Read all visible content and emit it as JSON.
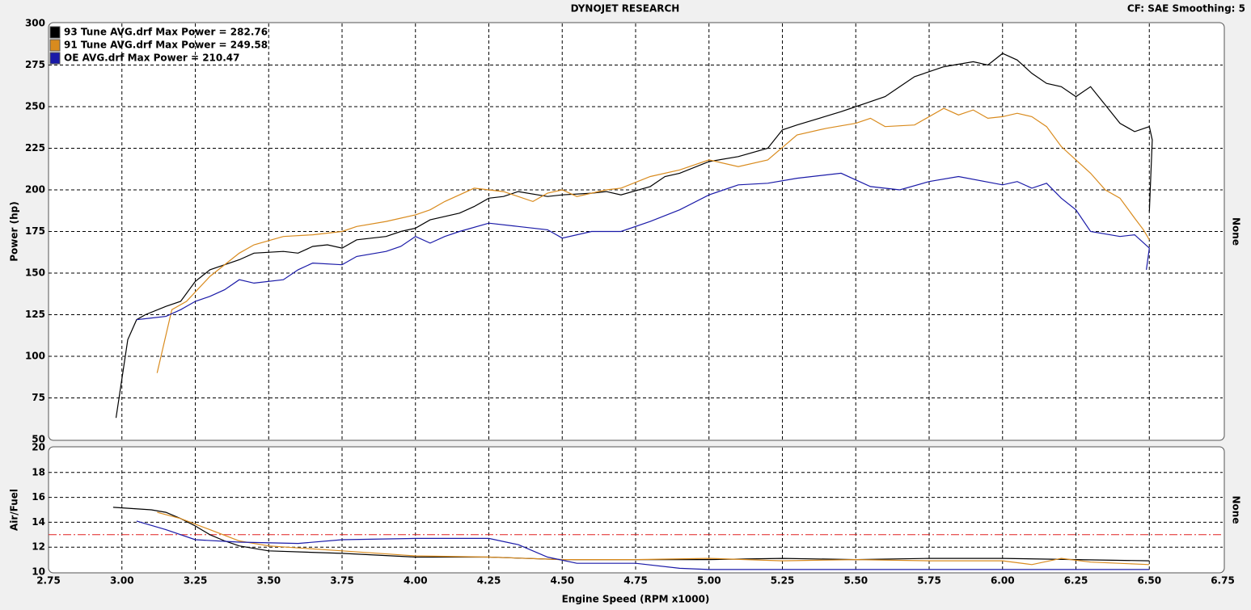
{
  "header": {
    "title": "DYNOJET RESEARCH",
    "settings": "CF: SAE  Smoothing: 5"
  },
  "chart_data": [
    {
      "type": "line",
      "ylabel": "Power (hp)",
      "right_label": "None",
      "ylim": [
        50,
        300
      ],
      "yticks": [
        50,
        75,
        100,
        125,
        150,
        175,
        200,
        225,
        250,
        275,
        300
      ],
      "grid": true,
      "series": [
        {
          "name": "93 Tune AVG.drf Max Power = 282.76",
          "color": "#000000",
          "x": [
            2.98,
            3.02,
            3.05,
            3.08,
            3.15,
            3.2,
            3.25,
            3.3,
            3.4,
            3.45,
            3.55,
            3.6,
            3.65,
            3.7,
            3.75,
            3.8,
            3.9,
            3.95,
            4.0,
            4.05,
            4.15,
            4.2,
            4.25,
            4.3,
            4.35,
            4.45,
            4.5,
            4.6,
            4.65,
            4.7,
            4.8,
            4.85,
            4.9,
            5.0,
            5.1,
            5.2,
            5.25,
            5.3,
            5.45,
            5.5,
            5.6,
            5.65,
            5.7,
            5.8,
            5.9,
            5.95,
            6.0,
            6.05,
            6.1,
            6.15,
            6.2,
            6.25,
            6.3,
            6.35,
            6.4,
            6.45,
            6.5,
            6.51,
            6.5
          ],
          "values": [
            63,
            110,
            122,
            125,
            130,
            133,
            145,
            152,
            158,
            162,
            163,
            162,
            166,
            167,
            165,
            170,
            172,
            175,
            177,
            182,
            186,
            190,
            195,
            196,
            199,
            196,
            197,
            198,
            199,
            197,
            202,
            208,
            210,
            217,
            220,
            225,
            236,
            239,
            247,
            250,
            256,
            262,
            268,
            274,
            277,
            275,
            282,
            278,
            270,
            264,
            262,
            256,
            262,
            251,
            240,
            235,
            238,
            230,
            187
          ]
        },
        {
          "name": "91 Tune AVG.drf Max Power = 249.58",
          "color": "#d98b1e",
          "x": [
            3.12,
            3.17,
            3.22,
            3.3,
            3.4,
            3.45,
            3.55,
            3.65,
            3.75,
            3.8,
            3.9,
            4.0,
            4.05,
            4.1,
            4.2,
            4.3,
            4.4,
            4.45,
            4.5,
            4.55,
            4.65,
            4.7,
            4.8,
            4.9,
            5.0,
            5.1,
            5.2,
            5.3,
            5.4,
            5.5,
            5.55,
            5.6,
            5.7,
            5.8,
            5.85,
            5.9,
            5.95,
            6.0,
            6.05,
            6.1,
            6.15,
            6.2,
            6.25,
            6.3,
            6.35,
            6.4,
            6.45,
            6.48,
            6.5
          ],
          "values": [
            90,
            128,
            133,
            148,
            162,
            167,
            172,
            173,
            175,
            178,
            181,
            185,
            188,
            193,
            201,
            199,
            193,
            198,
            200,
            196,
            200,
            201,
            208,
            212,
            218,
            214,
            218,
            233,
            237,
            240,
            243,
            238,
            239,
            249,
            245,
            248,
            243,
            244,
            246,
            244,
            238,
            226,
            218,
            210,
            200,
            195,
            183,
            176,
            170
          ]
        },
        {
          "name": "OE AVG.drf Max Power = 210.47",
          "color": "#1a1aa8",
          "x": [
            3.05,
            3.1,
            3.15,
            3.2,
            3.25,
            3.3,
            3.35,
            3.4,
            3.45,
            3.55,
            3.6,
            3.65,
            3.75,
            3.8,
            3.9,
            3.95,
            4.0,
            4.05,
            4.1,
            4.15,
            4.25,
            4.35,
            4.45,
            4.5,
            4.6,
            4.7,
            4.8,
            4.9,
            5.0,
            5.05,
            5.1,
            5.2,
            5.3,
            5.45,
            5.55,
            5.65,
            5.75,
            5.85,
            6.0,
            6.05,
            6.1,
            6.15,
            6.2,
            6.25,
            6.3,
            6.4,
            6.45,
            6.5,
            6.49
          ],
          "values": [
            122,
            123,
            124,
            128,
            133,
            136,
            140,
            146,
            144,
            146,
            152,
            156,
            155,
            160,
            163,
            166,
            172,
            168,
            172,
            175,
            180,
            178,
            176,
            171,
            175,
            175,
            181,
            188,
            197,
            200,
            203,
            204,
            207,
            210,
            202,
            200,
            205,
            208,
            203,
            205,
            201,
            204,
            195,
            188,
            175,
            172,
            173,
            165,
            152
          ]
        }
      ]
    },
    {
      "type": "line",
      "ylabel": "Air/Fuel",
      "right_label": "None",
      "xlabel": "Engine Speed (RPM x1000)",
      "xlim": [
        2.75,
        6.75
      ],
      "xticks": [
        {
          "value": 2.75,
          "label": "2.75"
        },
        {
          "value": 3,
          "label": "3.00"
        },
        {
          "value": 3.25,
          "label": "3.25"
        },
        {
          "value": 3.5,
          "label": "3.50"
        },
        {
          "value": 3.75,
          "label": "3.75"
        },
        {
          "value": 4,
          "label": "4.00"
        },
        {
          "value": 4.25,
          "label": "4.25"
        },
        {
          "value": 4.5,
          "label": "4.50"
        },
        {
          "value": 4.75,
          "label": "4.75"
        },
        {
          "value": 5,
          "label": "5.00"
        },
        {
          "value": 5.25,
          "label": "5.25"
        },
        {
          "value": 5.5,
          "label": "5.50"
        },
        {
          "value": 5.75,
          "label": "5.75"
        },
        {
          "value": 6,
          "label": "6.00"
        },
        {
          "value": 6.25,
          "label": "6.25"
        },
        {
          "value": 6.5,
          "label": "6.50"
        },
        {
          "value": 6.75,
          "label": "6.75"
        }
      ],
      "ylim": [
        10,
        20
      ],
      "yticks": [
        10,
        12,
        14,
        16,
        18,
        20
      ],
      "grid": true,
      "reference_line": 13,
      "reference_color": "#e02020",
      "series": [
        {
          "color": "#000000",
          "x": [
            2.97,
            3.1,
            3.15,
            3.2,
            3.25,
            3.3,
            3.35,
            3.4,
            3.5,
            3.75,
            4.0,
            4.25,
            4.5,
            4.75,
            5.0,
            5.25,
            5.5,
            5.75,
            6.0,
            6.25,
            6.5
          ],
          "values": [
            15.2,
            15.0,
            14.8,
            14.3,
            13.7,
            13.0,
            12.5,
            12.1,
            11.7,
            11.5,
            11.2,
            11.2,
            11.0,
            11.0,
            11.0,
            11.1,
            11.0,
            11.1,
            11.1,
            11.0,
            10.9
          ]
        },
        {
          "color": "#d98b1e",
          "x": [
            3.12,
            3.2,
            3.3,
            3.4,
            3.5,
            3.75,
            4.0,
            4.25,
            4.5,
            4.75,
            5.0,
            5.25,
            5.5,
            5.75,
            6.0,
            6.1,
            6.2,
            6.3,
            6.5
          ],
          "values": [
            14.8,
            14.3,
            13.4,
            12.5,
            12.1,
            11.7,
            11.3,
            11.2,
            11.0,
            11.0,
            11.1,
            10.9,
            11.0,
            10.9,
            10.9,
            10.6,
            11.1,
            10.8,
            10.6
          ]
        },
        {
          "color": "#1a1aa8",
          "x": [
            3.05,
            3.15,
            3.25,
            3.4,
            3.6,
            3.75,
            4.0,
            4.25,
            4.35,
            4.45,
            4.55,
            4.75,
            4.9,
            5.0,
            5.5,
            6.0,
            6.5
          ],
          "values": [
            14.1,
            13.4,
            12.6,
            12.4,
            12.3,
            12.6,
            12.7,
            12.7,
            12.2,
            11.2,
            10.7,
            10.7,
            10.3,
            10.2,
            10.2,
            10.2,
            10.2
          ]
        }
      ]
    }
  ]
}
